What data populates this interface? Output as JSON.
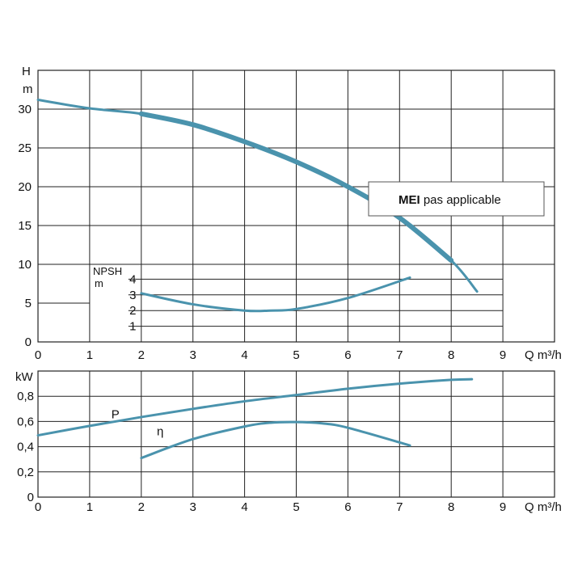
{
  "chart_data": [
    {
      "type": "line",
      "title": "",
      "xlabel": "Q m³/h",
      "ylabel_top": "H",
      "ylabel_unit": "m",
      "xlim": [
        0,
        10
      ],
      "ylim": [
        0,
        35
      ],
      "xticks": [
        "0",
        "1",
        "2",
        "3",
        "4",
        "5",
        "6",
        "7",
        "8",
        "9"
      ],
      "yticks": [
        "0",
        "5",
        "10",
        "15",
        "20",
        "25",
        "30"
      ],
      "grid": true,
      "series": [
        {
          "name": "",
          "x": [
            0,
            1,
            2,
            3,
            4,
            5,
            6,
            7,
            8,
            8.5
          ],
          "y": [
            31.2,
            30.1,
            29.4,
            28,
            25.8,
            23.2,
            20,
            16,
            10.5,
            6.5
          ]
        }
      ],
      "annotation": {
        "bold": "MEI",
        "text": " pas applicable"
      }
    },
    {
      "type": "line",
      "title": "",
      "ylabel_top": "NPSH",
      "ylabel_unit": "m",
      "xlim": [
        0,
        10
      ],
      "ylim": [
        0,
        4
      ],
      "yticks": [
        "1",
        "2",
        "3",
        "4"
      ],
      "series": [
        {
          "name": "",
          "x": [
            2,
            3,
            4,
            4.5,
            5,
            6,
            7.2
          ],
          "y": [
            3.1,
            2.4,
            2.0,
            2.0,
            2.1,
            2.8,
            4.1
          ]
        }
      ]
    },
    {
      "type": "line",
      "title": "",
      "xlabel": "Q m³/h",
      "ylabel": "kW",
      "xlim": [
        0,
        10
      ],
      "ylim": [
        0,
        1.0
      ],
      "xticks": [
        "0",
        "1",
        "2",
        "3",
        "4",
        "5",
        "6",
        "7",
        "8",
        "9"
      ],
      "yticks": [
        "0",
        "0,2",
        "0,4",
        "0,6",
        "0,8"
      ],
      "grid": true,
      "series": [
        {
          "name": "P",
          "x": [
            0,
            1,
            2,
            3,
            4,
            5,
            6,
            7,
            8,
            8.4
          ],
          "y": [
            0.49,
            0.565,
            0.635,
            0.7,
            0.76,
            0.81,
            0.86,
            0.9,
            0.93,
            0.935
          ]
        },
        {
          "name": "η",
          "x": [
            2,
            3,
            4,
            4.5,
            5,
            5.5,
            6,
            7.2
          ],
          "y": [
            0.31,
            0.46,
            0.56,
            0.59,
            0.595,
            0.585,
            0.55,
            0.41
          ]
        }
      ]
    }
  ],
  "colors": {
    "curve": "#4a93ad",
    "grid": "#222222",
    "box_border": "#555555"
  }
}
